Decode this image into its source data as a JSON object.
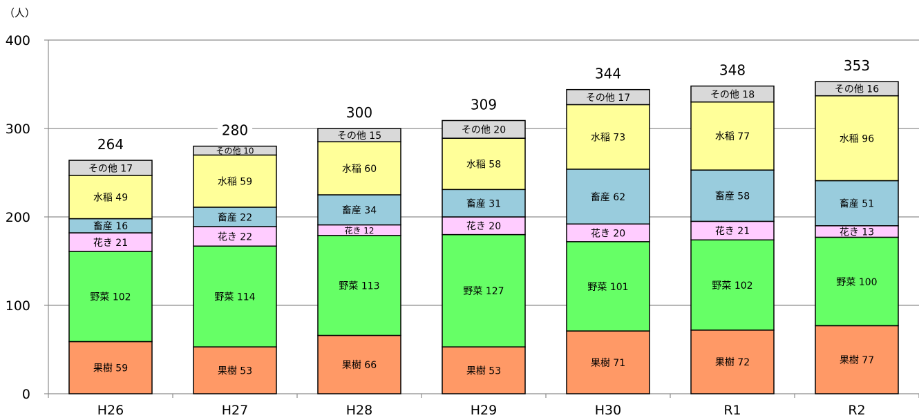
{
  "chart_data": {
    "type": "bar",
    "stacked": true,
    "unit_label": "（人）",
    "title": "",
    "xlabel": "",
    "ylabel": "",
    "ylim": [
      0,
      400
    ],
    "yticks": [
      0,
      100,
      200,
      300,
      400
    ],
    "grid": true,
    "legend": "none",
    "categories": [
      "H26",
      "H27",
      "H28",
      "H29",
      "H30",
      "R1",
      "R2"
    ],
    "totals": [
      264,
      280,
      300,
      309,
      344,
      348,
      353
    ],
    "series": [
      {
        "name": "果樹",
        "color": "#ff9966",
        "values": [
          59,
          53,
          66,
          53,
          71,
          72,
          77
        ]
      },
      {
        "name": "野菜",
        "color": "#66ff66",
        "values": [
          102,
          114,
          113,
          127,
          101,
          102,
          100
        ]
      },
      {
        "name": "花き",
        "color": "#ffccff",
        "values": [
          21,
          22,
          12,
          20,
          20,
          21,
          13
        ]
      },
      {
        "name": "畜産",
        "color": "#99ccdd",
        "values": [
          16,
          22,
          34,
          31,
          62,
          58,
          51
        ]
      },
      {
        "name": "水稲",
        "color": "#ffff99",
        "values": [
          49,
          59,
          60,
          58,
          73,
          77,
          96
        ]
      },
      {
        "name": "その他",
        "color": "#d9d9d9",
        "values": [
          17,
          10,
          15,
          20,
          17,
          18,
          16
        ]
      }
    ]
  }
}
